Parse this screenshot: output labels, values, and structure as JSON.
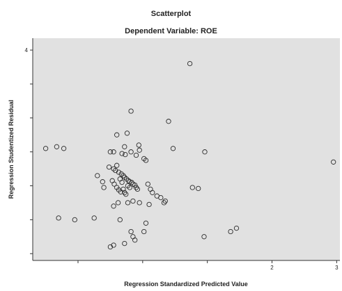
{
  "chart_data": {
    "type": "scatter",
    "title": "Scatterplot",
    "subtitle": "Dependent Variable: ROE",
    "xlabel": "Regression Standardized Predicted Value",
    "ylabel": "Regression Studentized Residual",
    "xlim": [
      -1.7,
      3.05
    ],
    "ylim": [
      -2.2,
      4.35
    ],
    "xticks": [
      -1,
      0,
      1,
      2,
      3
    ],
    "xtick_labels": [
      "",
      "",
      "",
      "2",
      "3"
    ],
    "yticks": [
      -2,
      -1,
      0,
      1,
      2,
      3,
      4
    ],
    "ytick_labels": [
      "",
      "",
      "",
      "",
      "",
      "",
      "4"
    ],
    "grid": false,
    "legend": "none",
    "colors": {
      "plot_bg": "#e1e1e1",
      "marker": "#2a2a2a"
    },
    "points": [
      [
        0.73,
        3.6
      ],
      [
        -0.18,
        2.2
      ],
      [
        0.4,
        1.9
      ],
      [
        -0.24,
        1.55
      ],
      [
        -0.4,
        1.5
      ],
      [
        -1.5,
        1.1
      ],
      [
        -1.33,
        1.15
      ],
      [
        -1.22,
        1.1
      ],
      [
        -0.28,
        1.15
      ],
      [
        -0.05,
        1.05
      ],
      [
        0.47,
        1.1
      ],
      [
        0.96,
        1.0
      ],
      [
        -0.18,
        1.0
      ],
      [
        -0.45,
        1.0
      ],
      [
        -0.5,
        1.0
      ],
      [
        -0.32,
        0.95
      ],
      [
        -0.27,
        0.92
      ],
      [
        -0.1,
        0.9
      ],
      [
        0.02,
        0.8
      ],
      [
        0.05,
        0.75
      ],
      [
        -0.4,
        0.6
      ],
      [
        -0.45,
        0.5
      ],
      [
        -0.42,
        0.45
      ],
      [
        -0.37,
        0.4
      ],
      [
        -0.33,
        0.35
      ],
      [
        -0.3,
        0.3
      ],
      [
        -0.28,
        0.25
      ],
      [
        -0.25,
        0.2
      ],
      [
        -0.22,
        0.15
      ],
      [
        -0.2,
        0.12
      ],
      [
        -0.17,
        0.1
      ],
      [
        -0.15,
        0.05
      ],
      [
        -0.12,
        0.02
      ],
      [
        -0.1,
        -0.05
      ],
      [
        -0.08,
        -0.1
      ],
      [
        -0.47,
        0.15
      ],
      [
        -0.44,
        0.05
      ],
      [
        -0.4,
        -0.05
      ],
      [
        -0.37,
        -0.12
      ],
      [
        -0.34,
        -0.18
      ],
      [
        -0.3,
        -0.1
      ],
      [
        -0.28,
        -0.2
      ],
      [
        -0.26,
        -0.25
      ],
      [
        -0.23,
        0.0
      ],
      [
        -0.2,
        -0.05
      ],
      [
        -0.35,
        0.2
      ],
      [
        -0.32,
        0.1
      ],
      [
        0.08,
        0.05
      ],
      [
        0.12,
        -0.1
      ],
      [
        0.15,
        -0.2
      ],
      [
        0.22,
        -0.3
      ],
      [
        0.28,
        -0.35
      ],
      [
        0.35,
        -0.45
      ],
      [
        0.1,
        -0.55
      ],
      [
        -0.05,
        -0.5
      ],
      [
        -0.15,
        -0.45
      ],
      [
        -0.23,
        -0.5
      ],
      [
        -0.38,
        -0.5
      ],
      [
        -0.45,
        -0.6
      ],
      [
        0.33,
        -0.5
      ],
      [
        0.77,
        -0.05
      ],
      [
        0.86,
        -0.08
      ],
      [
        -0.6,
        -0.05
      ],
      [
        -1.3,
        -0.95
      ],
      [
        -1.05,
        -1.0
      ],
      [
        -0.75,
        -0.95
      ],
      [
        -0.35,
        -1.0
      ],
      [
        0.05,
        -1.1
      ],
      [
        0.02,
        -1.35
      ],
      [
        -0.15,
        -1.5
      ],
      [
        -0.28,
        -1.7
      ],
      [
        -0.45,
        -1.75
      ],
      [
        -0.5,
        -1.8
      ],
      [
        -0.18,
        -1.35
      ],
      [
        -0.12,
        -1.6
      ],
      [
        0.95,
        -1.5
      ],
      [
        1.36,
        -1.35
      ],
      [
        1.45,
        -1.25
      ],
      [
        2.95,
        0.7
      ],
      [
        -0.52,
        0.55
      ],
      [
        -0.06,
        1.2
      ],
      [
        -0.7,
        0.3
      ],
      [
        -0.62,
        0.12
      ]
    ]
  }
}
